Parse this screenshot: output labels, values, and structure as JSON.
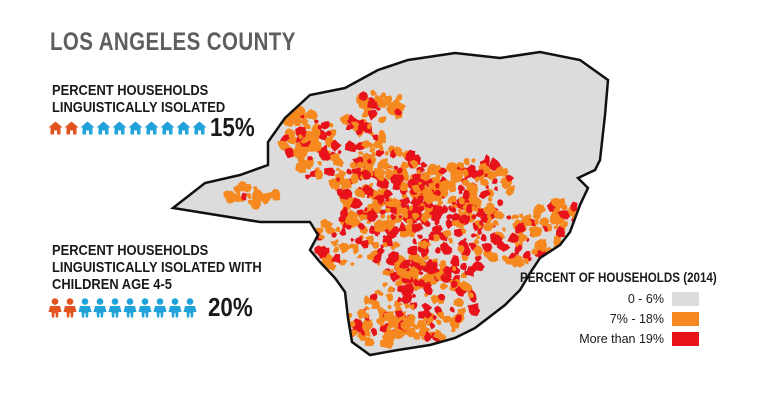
{
  "title": "LOS ANGELES COUNTY",
  "stats": [
    {
      "label_lines": [
        "PERCENT HOUSEHOLDS",
        "LINGUISTICALLY ISOLATED"
      ],
      "value": "15%",
      "icon": "house-icon",
      "icon_count": 10,
      "highlighted_fraction": 0.15,
      "highlight_color": "#e2531f",
      "base_color": "#1fa3d8"
    },
    {
      "label_lines": [
        "PERCENT HOUSEHOLDS",
        "LINGUISTICALLY ISOLATED WITH",
        "CHILDREN AGE 4-5"
      ],
      "value": "20%",
      "icon": "person-icon",
      "icon_count": 10,
      "highlighted_fraction": 0.2,
      "highlight_color": "#e2531f",
      "base_color": "#1fa3d8"
    }
  ],
  "legend": {
    "title": "PERCENT OF HOUSEHOLDS (2014)",
    "items": [
      {
        "label": "0 - 6%",
        "color": "#dcdcdc"
      },
      {
        "label": "7% - 18%",
        "color": "#f5891f"
      },
      {
        "label": "More than 19%",
        "color": "#e8131a"
      }
    ]
  },
  "map_colors": {
    "base": "#dcdcdc",
    "border": "#111111",
    "medium": "#f5891f",
    "high": "#e8131a"
  }
}
